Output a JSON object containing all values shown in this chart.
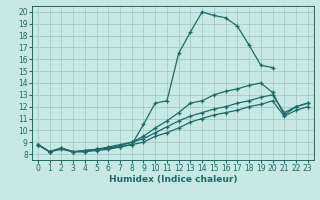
{
  "xlabel": "Humidex (Indice chaleur)",
  "xlim": [
    -0.5,
    23.5
  ],
  "ylim": [
    7.5,
    20.5
  ],
  "xticks": [
    0,
    1,
    2,
    3,
    4,
    5,
    6,
    7,
    8,
    9,
    10,
    11,
    12,
    13,
    14,
    15,
    16,
    17,
    18,
    19,
    20,
    21,
    22,
    23
  ],
  "yticks": [
    8,
    9,
    10,
    11,
    12,
    13,
    14,
    15,
    16,
    17,
    18,
    19,
    20
  ],
  "bg_color": "#c8e8e4",
  "grid_color": "#a4ccc8",
  "line_color": "#1a6b6b",
  "lines": [
    {
      "x": [
        0,
        1,
        2,
        3,
        4,
        5,
        6,
        7,
        8,
        9,
        10,
        11,
        12,
        13,
        14,
        15,
        16,
        17,
        18,
        19,
        20
      ],
      "y": [
        8.8,
        8.2,
        8.5,
        8.2,
        8.3,
        8.4,
        8.5,
        8.6,
        8.8,
        10.5,
        12.3,
        12.5,
        16.5,
        18.3,
        20.0,
        19.7,
        19.5,
        18.8,
        17.2,
        15.5,
        15.3
      ]
    },
    {
      "x": [
        0,
        1,
        2,
        3,
        4,
        5,
        6,
        7,
        8,
        9,
        10,
        11,
        12,
        13,
        14,
        15,
        16,
        17,
        18,
        19,
        20,
        21,
        22,
        23
      ],
      "y": [
        8.8,
        8.2,
        8.5,
        8.2,
        8.3,
        8.4,
        8.6,
        8.8,
        9.0,
        9.5,
        10.2,
        10.8,
        11.5,
        12.3,
        12.5,
        13.0,
        13.3,
        13.5,
        13.8,
        14.0,
        13.2,
        11.3,
        12.0,
        12.3
      ]
    },
    {
      "x": [
        0,
        1,
        2,
        3,
        4,
        5,
        6,
        7,
        8,
        9,
        10,
        11,
        12,
        13,
        14,
        15,
        16,
        17,
        18,
        19,
        20,
        21,
        22,
        23
      ],
      "y": [
        8.8,
        8.2,
        8.5,
        8.2,
        8.2,
        8.4,
        8.5,
        8.7,
        9.0,
        9.3,
        9.8,
        10.3,
        10.8,
        11.2,
        11.5,
        11.8,
        12.0,
        12.3,
        12.5,
        12.8,
        13.0,
        11.5,
        12.0,
        12.3
      ]
    },
    {
      "x": [
        0,
        1,
        2,
        3,
        4,
        5,
        6,
        7,
        8,
        9,
        10,
        11,
        12,
        13,
        14,
        15,
        16,
        17,
        18,
        19,
        20,
        21,
        22,
        23
      ],
      "y": [
        8.8,
        8.2,
        8.4,
        8.2,
        8.2,
        8.3,
        8.4,
        8.6,
        8.8,
        9.0,
        9.5,
        9.8,
        10.2,
        10.7,
        11.0,
        11.3,
        11.5,
        11.7,
        12.0,
        12.2,
        12.5,
        11.2,
        11.7,
        12.0
      ]
    }
  ],
  "tick_fontsize": 5.5,
  "label_fontsize": 6.5
}
